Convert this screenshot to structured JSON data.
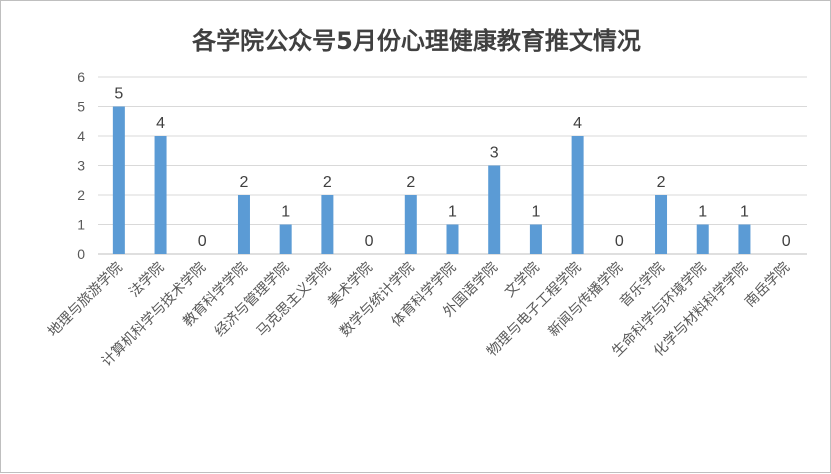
{
  "colors": {
    "bar": "#5b9bd5",
    "grid": "#d9d9d9",
    "axis": "#bfbfbf"
  },
  "chart_data": {
    "type": "bar",
    "title": "各学院公众号5月份心理健康教育推文情况",
    "xlabel": "",
    "ylabel": "",
    "ylim": [
      0,
      6
    ],
    "yticks": [
      0,
      1,
      2,
      3,
      4,
      5,
      6
    ],
    "grid": true,
    "legend": "none",
    "categories": [
      "地理与旅游学院",
      "法学院",
      "计算机科学与技术学院",
      "教育科学学院",
      "经济与管理学院",
      "马克思主义学院",
      "美术学院",
      "数学与统计学院",
      "体育科学学院",
      "外国语学院",
      "文学院",
      "物理与电子工程学院",
      "新闻与传播学院",
      "音乐学院",
      "生命科学与环境学院",
      "化学与材料科学学院",
      "南岳学院"
    ],
    "values": [
      5,
      4,
      0,
      2,
      1,
      2,
      0,
      2,
      1,
      3,
      1,
      4,
      0,
      2,
      1,
      1,
      0
    ]
  }
}
